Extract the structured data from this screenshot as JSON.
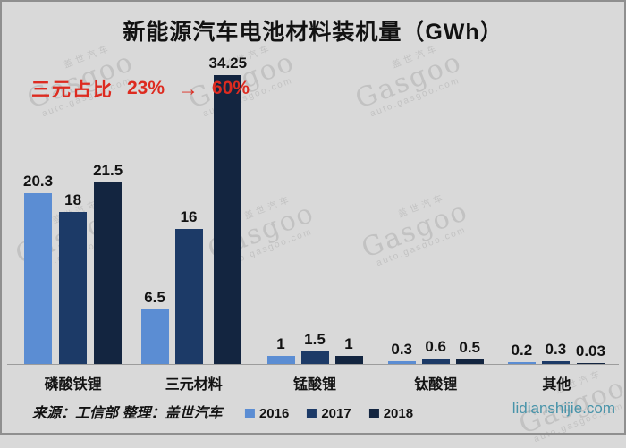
{
  "title": "新能源汽车电池材料装机量（GWh）",
  "annotation": {
    "label": "三元占比",
    "from": "23%",
    "arrow": "→",
    "to": "60%",
    "color": "#dd2b20"
  },
  "chart_data": {
    "type": "bar",
    "title": "新能源汽车电池材料装机量（GWh）",
    "categories": [
      "磷酸铁锂",
      "三元材料",
      "锰酸锂",
      "钛酸锂",
      "其他"
    ],
    "series": [
      {
        "name": "2016",
        "color": "#5b8dd3",
        "values": [
          20.3,
          6.5,
          1,
          0.3,
          0.2
        ]
      },
      {
        "name": "2017",
        "color": "#1c3a67",
        "values": [
          18,
          16,
          1.5,
          0.6,
          0.3
        ]
      },
      {
        "name": "2018",
        "color": "#132540",
        "values": [
          21.5,
          34.25,
          1,
          0.5,
          0.03
        ]
      }
    ],
    "xlabel": "",
    "ylabel": "",
    "ylim": [
      0,
      34.25
    ],
    "grid": false,
    "value_labels": true,
    "legend_position": "bottom",
    "background": "#d9d9d9"
  },
  "footer": {
    "source": "来源：工信部 整理：盖世汽车",
    "site": "lidianshijie.com"
  },
  "watermark": {
    "brand_cn": "盖世汽车",
    "brand_en": "Gasgoo",
    "brand_url": "auto.gasgoo.com"
  }
}
